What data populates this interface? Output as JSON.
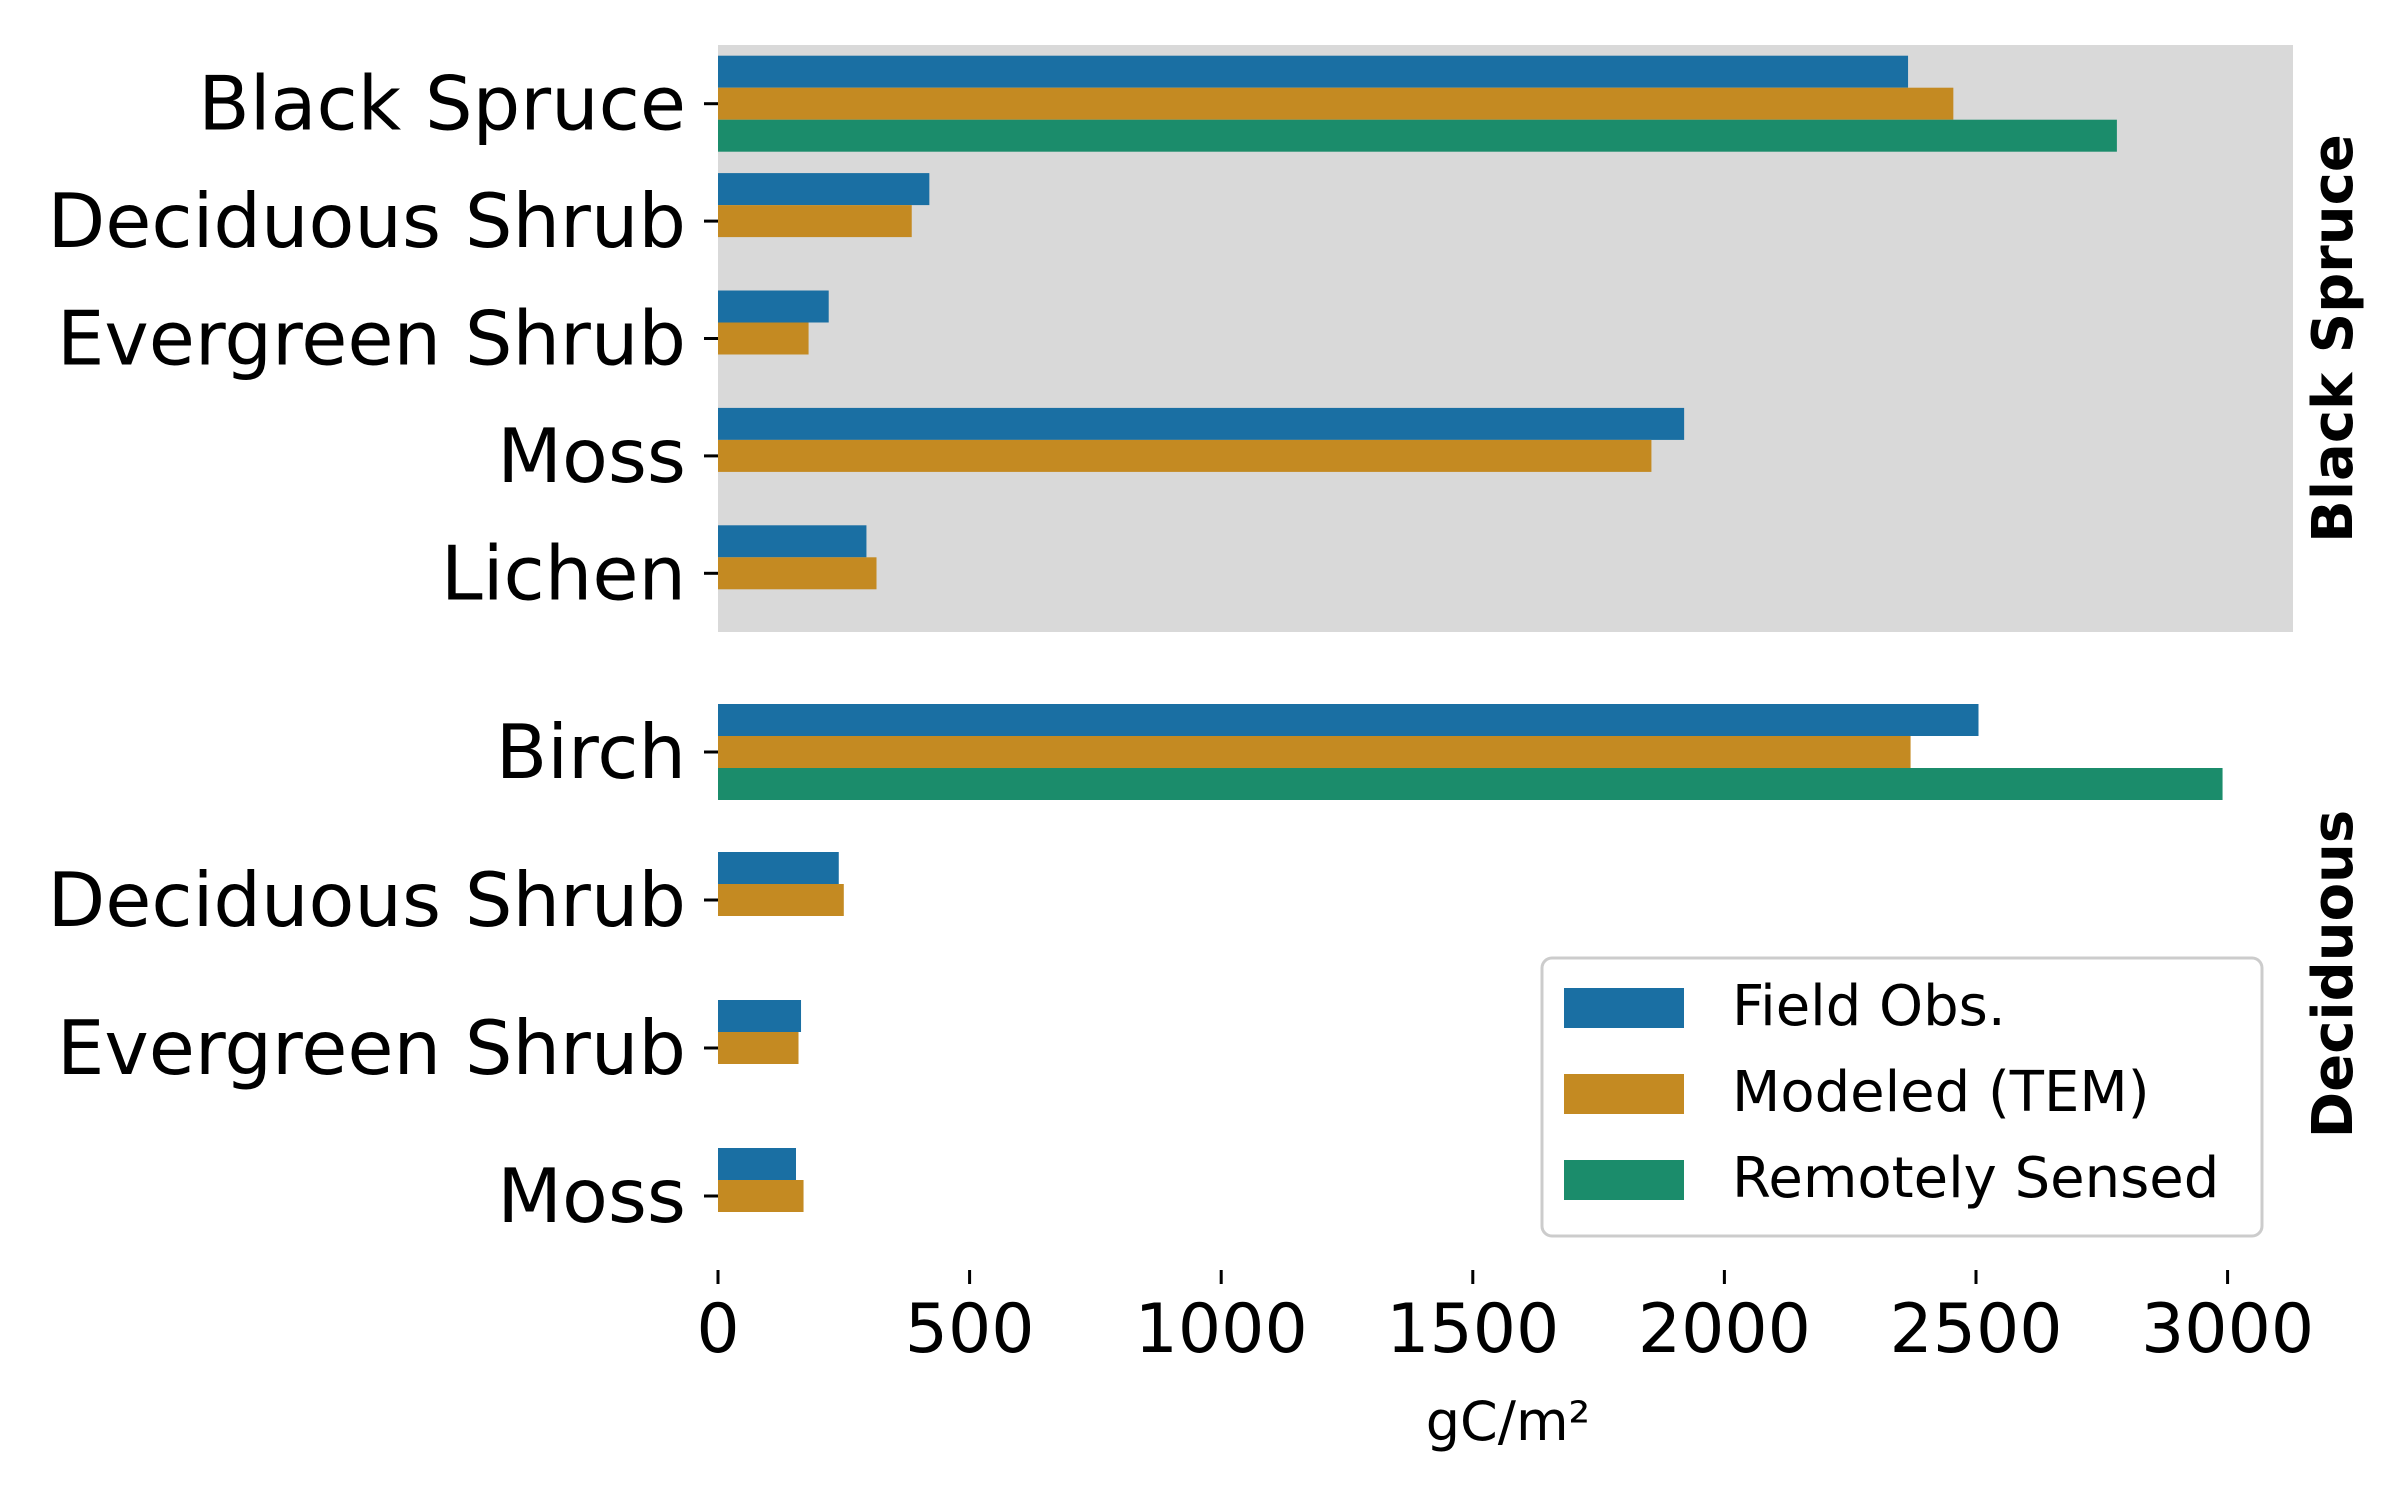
{
  "chart_data": {
    "type": "bar",
    "orientation": "horizontal",
    "xlabel": "gC/m²",
    "xlim": [
      0,
      3130
    ],
    "xticks": [
      0,
      500,
      1000,
      1500,
      2000,
      2500,
      3000
    ],
    "legend": {
      "placement": "bottom-right",
      "entries": [
        "Field Obs.",
        "Modeled (TEM)",
        "Remotely Sensed"
      ]
    },
    "colors": {
      "Field Obs.": "#1a6fa3",
      "Modeled (TEM)": "#c48a22",
      "Remotely Sensed": "#1b8c6b",
      "panel_background_highlight": "#d9d9d9"
    },
    "panels": [
      {
        "facet_label": "Black Spruce",
        "highlighted": true,
        "categories": [
          "Black Spruce",
          "Deciduous Shrub",
          "Evergreen Shrub",
          "Moss",
          "Lichen"
        ],
        "series": [
          {
            "name": "Field Obs.",
            "values": [
              2365,
              420,
              220,
              1920,
              295
            ]
          },
          {
            "name": "Modeled (TEM)",
            "values": [
              2455,
              385,
              180,
              1855,
              315
            ]
          },
          {
            "name": "Remotely Sensed",
            "values": [
              2780,
              null,
              null,
              null,
              null
            ]
          }
        ]
      },
      {
        "facet_label": "Deciduous",
        "highlighted": false,
        "categories": [
          "Birch",
          "Deciduous Shrub",
          "Evergreen Shrub",
          "Moss"
        ],
        "series": [
          {
            "name": "Field Obs.",
            "values": [
              2505,
              240,
              165,
              155
            ]
          },
          {
            "name": "Modeled (TEM)",
            "values": [
              2370,
              250,
              160,
              170
            ]
          },
          {
            "name": "Remotely Sensed",
            "values": [
              2990,
              null,
              null,
              null
            ]
          }
        ]
      }
    ]
  }
}
